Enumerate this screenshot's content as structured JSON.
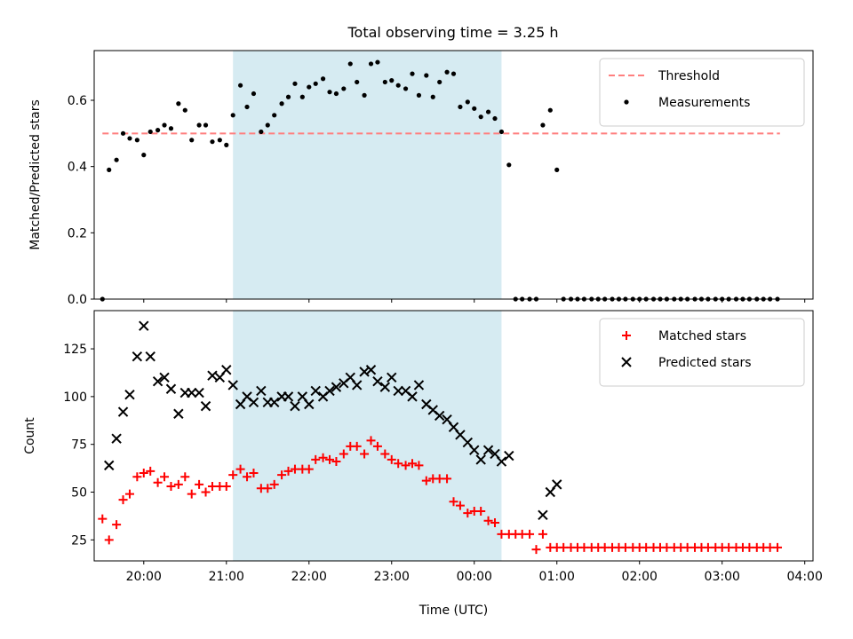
{
  "title": "Total observing time = 3.25 h",
  "chart_data": [
    {
      "type": "scatter",
      "ylabel": "Matched/Predicted stars",
      "xlabel": "",
      "xlim": [
        19.4,
        28.1
      ],
      "ylim": [
        0,
        0.75
      ],
      "x_scale": "time (decimal hours)",
      "x_ticks": [
        20,
        21,
        22,
        23,
        24,
        25,
        26,
        27,
        28
      ],
      "x_tick_labels": [],
      "y_ticks": [
        0.0,
        0.2,
        0.4,
        0.6
      ],
      "y_tick_labels": [
        "0.0",
        "0.2",
        "0.4",
        "0.6"
      ],
      "highlight_span": [
        21.08,
        24.33
      ],
      "highlight_color": "#add8e6",
      "legend_position": "top-right",
      "threshold": {
        "name": "Threshold",
        "y": 0.5,
        "x_range": [
          19.5,
          27.7
        ],
        "color": "#ff7f7f",
        "style": "dashed"
      },
      "series": [
        {
          "name": "Measurements",
          "color": "#000000",
          "marker": "dot",
          "x": [
            19.5,
            19.58,
            19.67,
            19.75,
            19.83,
            19.92,
            20.0,
            20.08,
            20.17,
            20.25,
            20.33,
            20.42,
            20.5,
            20.58,
            20.67,
            20.75,
            20.83,
            20.92,
            21.0,
            21.08,
            21.17,
            21.25,
            21.33,
            21.42,
            21.5,
            21.58,
            21.67,
            21.75,
            21.83,
            21.92,
            22.0,
            22.08,
            22.17,
            22.25,
            22.33,
            22.42,
            22.5,
            22.58,
            22.67,
            22.75,
            22.83,
            22.92,
            23.0,
            23.08,
            23.17,
            23.25,
            23.33,
            23.42,
            23.5,
            23.58,
            23.67,
            23.75,
            23.83,
            23.92,
            24.0,
            24.08,
            24.17,
            24.25,
            24.33,
            24.42,
            24.5,
            24.58,
            24.67,
            24.75,
            24.83,
            24.92,
            25.0,
            25.08,
            25.17,
            25.25,
            25.33,
            25.42,
            25.5,
            25.58,
            25.67,
            25.75,
            25.83,
            25.92,
            26.0,
            26.08,
            26.17,
            26.25,
            26.33,
            26.42,
            26.5,
            26.58,
            26.67,
            26.75,
            26.83,
            26.92,
            27.0,
            27.08,
            27.17,
            27.25,
            27.33,
            27.42,
            27.5,
            27.58,
            27.67
          ],
          "y": [
            0.0,
            0.39,
            0.42,
            0.5,
            0.485,
            0.48,
            0.435,
            0.505,
            0.51,
            0.525,
            0.515,
            0.59,
            0.57,
            0.48,
            0.525,
            0.525,
            0.475,
            0.48,
            0.465,
            0.555,
            0.645,
            0.58,
            0.62,
            0.505,
            0.525,
            0.555,
            0.59,
            0.61,
            0.65,
            0.61,
            0.64,
            0.65,
            0.665,
            0.625,
            0.62,
            0.635,
            0.71,
            0.655,
            0.615,
            0.71,
            0.715,
            0.655,
            0.66,
            0.645,
            0.635,
            0.68,
            0.615,
            0.675,
            0.61,
            0.655,
            0.685,
            0.68,
            0.58,
            0.595,
            0.575,
            0.55,
            0.565,
            0.545,
            0.505,
            0.405,
            0.0,
            0.0,
            0.0,
            0.0,
            0.525,
            0.57,
            0.39,
            0.0,
            0.0,
            0.0,
            0.0,
            0.0,
            0.0,
            0.0,
            0.0,
            0.0,
            0.0,
            0.0,
            0.0,
            0.0,
            0.0,
            0.0,
            0.0,
            0.0,
            0.0,
            0.0,
            0.0,
            0.0,
            0.0,
            0.0,
            0.0,
            0.0,
            0.0,
            0.0,
            0.0,
            0.0,
            0.0,
            0.0,
            0.0
          ]
        }
      ]
    },
    {
      "type": "scatter",
      "ylabel": "Count",
      "xlabel": "Time (UTC)",
      "xlim": [
        19.4,
        28.1
      ],
      "ylim": [
        14,
        145
      ],
      "x_ticks": [
        20,
        21,
        22,
        23,
        24,
        25,
        26,
        27,
        28
      ],
      "x_tick_labels": [
        "20:00",
        "21:00",
        "22:00",
        "23:00",
        "00:00",
        "01:00",
        "02:00",
        "03:00",
        "04:00"
      ],
      "y_ticks": [
        25,
        50,
        75,
        100,
        125
      ],
      "y_tick_labels": [
        "25",
        "50",
        "75",
        "100",
        "125"
      ],
      "highlight_span": [
        21.08,
        24.33
      ],
      "highlight_color": "#add8e6",
      "legend_position": "top-right",
      "series": [
        {
          "name": "Matched stars",
          "color": "#ff0000",
          "marker": "plus",
          "x": [
            19.5,
            19.58,
            19.67,
            19.75,
            19.83,
            19.92,
            20.0,
            20.08,
            20.17,
            20.25,
            20.33,
            20.42,
            20.5,
            20.58,
            20.67,
            20.75,
            20.83,
            20.92,
            21.0,
            21.08,
            21.17,
            21.25,
            21.33,
            21.42,
            21.5,
            21.58,
            21.67,
            21.75,
            21.83,
            21.92,
            22.0,
            22.08,
            22.17,
            22.25,
            22.33,
            22.42,
            22.5,
            22.58,
            22.67,
            22.75,
            22.83,
            22.92,
            23.0,
            23.08,
            23.17,
            23.25,
            23.33,
            23.42,
            23.5,
            23.58,
            23.67,
            23.75,
            23.83,
            23.92,
            24.0,
            24.08,
            24.17,
            24.25,
            24.33,
            24.42,
            24.5,
            24.58,
            24.67,
            24.75,
            24.83,
            24.92,
            25.0,
            25.08,
            25.17,
            25.25,
            25.33,
            25.42,
            25.5,
            25.58,
            25.67,
            25.75,
            25.83,
            25.92,
            26.0,
            26.08,
            26.17,
            26.25,
            26.33,
            26.42,
            26.5,
            26.58,
            26.67,
            26.75,
            26.83,
            26.92,
            27.0,
            27.08,
            27.17,
            27.25,
            27.33,
            27.42,
            27.5,
            27.58,
            27.67
          ],
          "y": [
            36,
            25,
            33,
            46,
            49,
            58,
            60,
            61,
            55,
            58,
            53,
            54,
            58,
            49,
            54,
            50,
            53,
            53,
            53,
            59,
            62,
            58,
            60,
            52,
            52,
            54,
            59,
            61,
            62,
            62,
            62,
            67,
            68,
            67,
            66,
            70,
            74,
            74,
            70,
            77,
            74,
            70,
            67,
            65,
            64,
            65,
            64,
            56,
            57,
            57,
            57,
            45,
            43,
            39,
            40,
            40,
            35,
            34,
            28,
            28,
            28,
            28,
            28,
            20,
            28,
            21,
            21,
            21,
            21,
            21,
            21,
            21,
            21,
            21,
            21,
            21,
            21,
            21,
            21,
            21,
            21,
            21,
            21,
            21,
            21,
            21,
            21,
            21,
            21,
            21,
            21,
            21,
            21,
            21,
            21,
            21,
            21,
            21,
            21
          ]
        },
        {
          "name": "Predicted stars",
          "color": "#000000",
          "marker": "x",
          "x": [
            19.58,
            19.67,
            19.75,
            19.83,
            19.92,
            20.0,
            20.08,
            20.17,
            20.25,
            20.33,
            20.42,
            20.5,
            20.58,
            20.67,
            20.75,
            20.83,
            20.92,
            21.0,
            21.08,
            21.17,
            21.25,
            21.33,
            21.42,
            21.5,
            21.58,
            21.67,
            21.75,
            21.83,
            21.92,
            22.0,
            22.08,
            22.17,
            22.25,
            22.33,
            22.42,
            22.5,
            22.58,
            22.67,
            22.75,
            22.83,
            22.92,
            23.0,
            23.08,
            23.17,
            23.25,
            23.33,
            23.42,
            23.5,
            23.58,
            23.67,
            23.75,
            23.83,
            23.92,
            24.0,
            24.08,
            24.17,
            24.25,
            24.33,
            24.42,
            24.83,
            24.92,
            25.0
          ],
          "y": [
            64,
            78,
            92,
            101,
            121,
            137,
            121,
            108,
            110,
            104,
            91,
            102,
            102,
            102,
            95,
            111,
            110,
            114,
            106,
            96,
            100,
            97,
            103,
            97,
            97,
            100,
            100,
            95,
            100,
            96,
            103,
            100,
            103,
            105,
            107,
            110,
            106,
            113,
            114,
            108,
            105,
            110,
            103,
            103,
            100,
            106,
            96,
            93,
            90,
            88,
            84,
            80,
            76,
            72,
            67,
            72,
            70,
            66,
            69,
            38,
            50,
            54
          ]
        }
      ]
    }
  ]
}
